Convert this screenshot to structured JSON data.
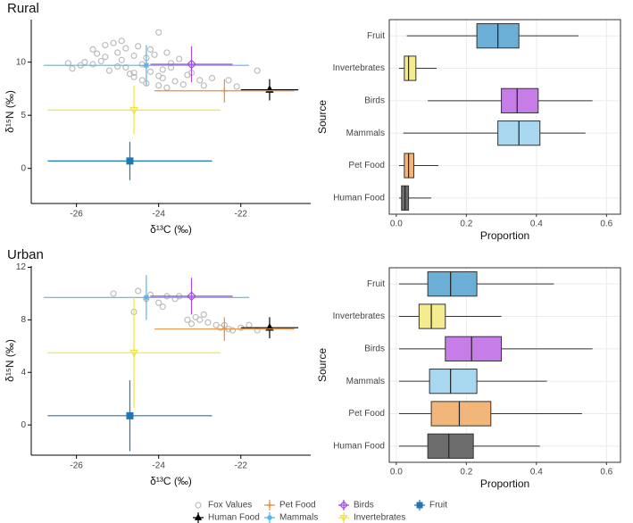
{
  "chart_data": [
    {
      "type": "scatter",
      "title": "Rural",
      "x_label": "δ¹³C (‰)",
      "y_label": "δ¹⁵N (‰)",
      "xlim": [
        -27.1,
        -20.3
      ],
      "ylim": [
        -3.3,
        14
      ],
      "xticks": [
        -26,
        -24,
        -22
      ],
      "yticks": [
        0,
        5,
        10
      ],
      "series": [
        {
          "name": "Fox Values",
          "color": "#bdbdbd",
          "marker": "circle",
          "x": [
            -26.2,
            -26.1,
            -25.9,
            -25.6,
            -25.5,
            -25.4,
            -25.3,
            -25.3,
            -25.2,
            -25.1,
            -25.0,
            -25.0,
            -24.9,
            -24.9,
            -24.8,
            -24.8,
            -24.7,
            -24.6,
            -24.6,
            -24.5,
            -24.4,
            -24.4,
            -24.3,
            -24.3,
            -24.2,
            -24.2,
            -24.1,
            -24.0,
            -24.0,
            -23.9,
            -23.9,
            -23.8,
            -23.8,
            -23.7,
            -23.6,
            -23.5,
            -23.4,
            -23.3,
            -23.2,
            -23.0,
            -22.9,
            -22.7,
            -22.3,
            -22.1,
            -21.6,
            -25.8,
            -25.6,
            -24.0,
            -23.7,
            -24.6
          ],
          "y": [
            9.9,
            9.4,
            9.7,
            11.2,
            10.8,
            10.1,
            11.6,
            10.5,
            9.2,
            11.8,
            10.9,
            9.6,
            10.2,
            12.0,
            9.5,
            11.3,
            8.9,
            10.6,
            9.0,
            11.5,
            8.3,
            9.8,
            10.4,
            8.0,
            9.1,
            11.2,
            10.7,
            7.8,
            12.8,
            9.3,
            8.5,
            10.9,
            7.6,
            9.9,
            8.2,
            10.3,
            7.9,
            8.8,
            9.0,
            8.3,
            7.8,
            8.5,
            8.3,
            7.7,
            9.2,
            10.0,
            9.8,
            8.7,
            9.5,
            8.6
          ]
        },
        {
          "name": "Human Food",
          "color": "#000000",
          "marker": "triangle",
          "x": [
            -21.3
          ],
          "y": [
            7.4
          ],
          "x_error": [
            0.7
          ],
          "y_error": [
            1.0
          ]
        },
        {
          "name": "Pet Food",
          "color": "#e69138",
          "marker": "plus",
          "x": [
            -22.4
          ],
          "y": [
            7.3
          ],
          "x_error": [
            1.7
          ],
          "y_error": [
            1.1
          ]
        },
        {
          "name": "Mammals",
          "color": "#56b4e9",
          "marker": "star",
          "x": [
            -24.3
          ],
          "y": [
            9.7
          ],
          "x_error": [
            2.5
          ],
          "y_error": [
            1.9
          ]
        },
        {
          "name": "Birds",
          "color": "#a64ddb",
          "marker": "diamond",
          "x": [
            -23.2
          ],
          "y": [
            9.8
          ],
          "x_error": [
            1.0
          ],
          "y_error": [
            1.7
          ]
        },
        {
          "name": "Invertebrates",
          "color": "#f0e442",
          "marker": "triangle-down",
          "x": [
            -24.6
          ],
          "y": [
            5.5
          ],
          "x_error": [
            2.1
          ],
          "y_error": [
            2.3
          ]
        },
        {
          "name": "Fruit",
          "color": "#1f78b4",
          "marker": "square",
          "x": [
            -24.7
          ],
          "y": [
            0.7
          ],
          "x_error": [
            2.0
          ],
          "y_error": [
            1.8
          ]
        }
      ]
    },
    {
      "type": "box",
      "x_label": "Proportion",
      "y_label": "Source",
      "categories": [
        "Fruit",
        "Invertebrates",
        "Birds",
        "Mammals",
        "Pet Food",
        "Human Food"
      ],
      "colors": [
        "#6baed6",
        "#f5eb8f",
        "#c77de8",
        "#a8d8f0",
        "#f2b57a",
        "#6d6d6d"
      ],
      "xlim": [
        -0.02,
        0.64
      ],
      "xticks": [
        {
          "value": 0,
          "label": "0.0"
        },
        0.2,
        0.4,
        0.6
      ],
      "grid": true,
      "whisker_low": [
        0.03,
        0.008,
        0.09,
        0.02,
        0.008,
        0.008
      ],
      "q1": [
        0.23,
        0.023,
        0.3,
        0.29,
        0.023,
        0.015
      ],
      "median": [
        0.29,
        0.035,
        0.345,
        0.35,
        0.035,
        0.025
      ],
      "q3": [
        0.35,
        0.056,
        0.405,
        0.41,
        0.05,
        0.035
      ],
      "whisker_high": [
        0.52,
        0.115,
        0.56,
        0.54,
        0.12,
        0.1
      ]
    },
    {
      "type": "scatter",
      "title": "Urban",
      "x_label": "δ¹³C (‰)",
      "y_label": "δ¹⁵N (‰)",
      "xlim": [
        -27.1,
        -20.3
      ],
      "ylim": [
        -2.3,
        12.1
      ],
      "xticks": [
        -26,
        -24,
        -22
      ],
      "yticks": [
        0,
        4,
        8,
        12
      ],
      "series": [
        {
          "name": "Fox Values",
          "color": "#bdbdbd",
          "marker": "circle",
          "x": [
            -25.1,
            -24.6,
            -24.5,
            -24.3,
            -24.2,
            -24.0,
            -23.9,
            -23.8,
            -23.6,
            -23.5,
            -23.3,
            -23.1,
            -23.0,
            -22.9,
            -22.8,
            -22.6,
            -22.5,
            -22.3,
            -22.2,
            -22.0,
            -21.8,
            -21.6,
            -23.2,
            -22.4
          ],
          "y": [
            10.0,
            8.6,
            10.2,
            9.6,
            9.9,
            9.3,
            9.0,
            9.8,
            9.6,
            9.8,
            8.0,
            8.2,
            8.0,
            8.4,
            7.8,
            7.6,
            7.4,
            7.3,
            7.2,
            7.4,
            7.6,
            7.2,
            7.7,
            7.6
          ]
        },
        {
          "name": "Human Food",
          "color": "#000000",
          "marker": "triangle",
          "x": [
            -21.3
          ],
          "y": [
            7.4
          ],
          "x_error": [
            0.7
          ],
          "y_error": [
            0.8
          ]
        },
        {
          "name": "Pet Food",
          "color": "#e69138",
          "marker": "plus",
          "x": [
            -22.4
          ],
          "y": [
            7.3
          ],
          "x_error": [
            1.7
          ],
          "y_error": [
            0.9
          ]
        },
        {
          "name": "Mammals",
          "color": "#56b4e9",
          "marker": "star",
          "x": [
            -24.3
          ],
          "y": [
            9.7
          ],
          "x_error": [
            2.5
          ],
          "y_error": [
            1.7
          ]
        },
        {
          "name": "Birds",
          "color": "#a64ddb",
          "marker": "diamond",
          "x": [
            -23.2
          ],
          "y": [
            9.8
          ],
          "x_error": [
            1.0
          ],
          "y_error": [
            1.4
          ]
        },
        {
          "name": "Invertebrates",
          "color": "#f0e442",
          "marker": "triangle-down",
          "x": [
            -24.6
          ],
          "y": [
            5.5
          ],
          "x_error": [
            2.1
          ],
          "y_error": [
            4.2
          ]
        },
        {
          "name": "Fruit",
          "color": "#1f78b4",
          "marker": "square",
          "x": [
            -24.7
          ],
          "y": [
            0.7
          ],
          "x_error": [
            2.0
          ],
          "y_error": [
            2.7
          ]
        }
      ]
    },
    {
      "type": "box",
      "x_label": "Proportion",
      "y_label": "Source",
      "categories": [
        "Fruit",
        "Invertebrates",
        "Birds",
        "Mammals",
        "Pet Food",
        "Human Food"
      ],
      "colors": [
        "#6baed6",
        "#f5eb8f",
        "#c77de8",
        "#a8d8f0",
        "#f2b57a",
        "#6d6d6d"
      ],
      "xlim": [
        -0.02,
        0.64
      ],
      "xticks": [
        {
          "value": 0,
          "label": "0.0"
        },
        0.2,
        0.4,
        0.6
      ],
      "grid": true,
      "whisker_low": [
        0.008,
        0.008,
        0.008,
        0.008,
        0.008,
        0.008
      ],
      "q1": [
        0.09,
        0.065,
        0.14,
        0.095,
        0.1,
        0.09
      ],
      "median": [
        0.155,
        0.1,
        0.215,
        0.155,
        0.18,
        0.15
      ],
      "q3": [
        0.23,
        0.14,
        0.3,
        0.23,
        0.27,
        0.22
      ],
      "whisker_high": [
        0.45,
        0.3,
        0.56,
        0.43,
        0.53,
        0.41
      ]
    }
  ]
}
